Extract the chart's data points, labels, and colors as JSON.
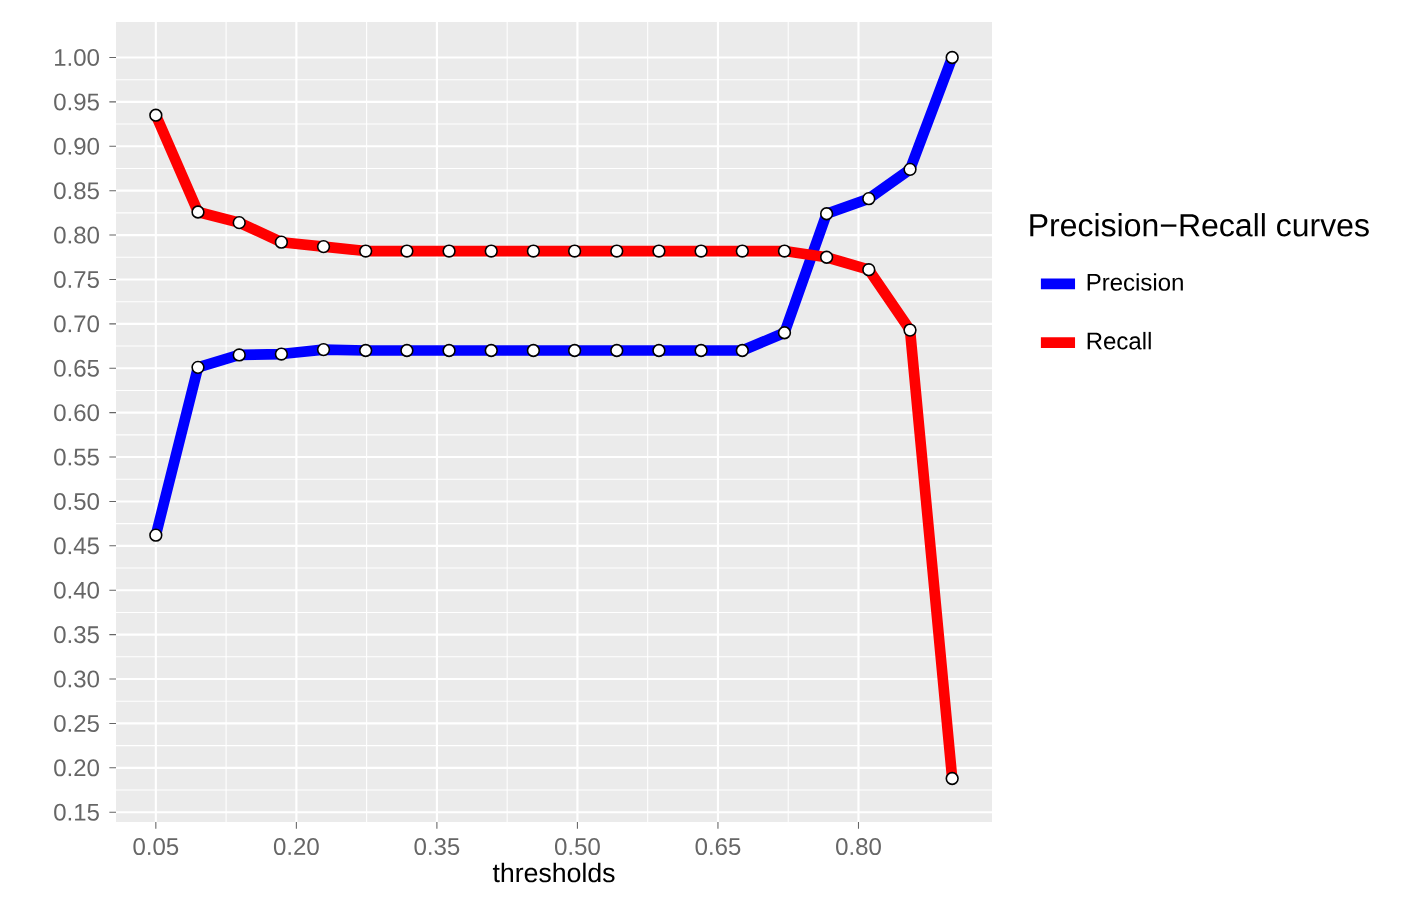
{
  "chart_data": {
    "type": "line",
    "xlabel": "thresholds",
    "legend_title": "Precision−Recall curves",
    "x": [
      0.05,
      0.095,
      0.139,
      0.184,
      0.229,
      0.274,
      0.318,
      0.363,
      0.408,
      0.453,
      0.497,
      0.542,
      0.587,
      0.632,
      0.676,
      0.721,
      0.766,
      0.811,
      0.855,
      0.9
    ],
    "series": [
      {
        "name": "Precision",
        "color": "#0000ff",
        "values": [
          0.462,
          0.651,
          0.665,
          0.666,
          0.671,
          0.67,
          0.67,
          0.67,
          0.67,
          0.67,
          0.67,
          0.67,
          0.67,
          0.67,
          0.67,
          0.69,
          0.824,
          0.841,
          0.874,
          1.0
        ]
      },
      {
        "name": "Recall",
        "color": "#ff0000",
        "values": [
          0.935,
          0.826,
          0.814,
          0.792,
          0.787,
          0.782,
          0.782,
          0.782,
          0.782,
          0.782,
          0.782,
          0.782,
          0.782,
          0.782,
          0.782,
          0.782,
          0.775,
          0.761,
          0.693,
          0.188
        ]
      }
    ],
    "xlim": [
      0.0075,
      0.9425
    ],
    "xticks": [
      0.05,
      {
        "value": 0.2,
        "label": "0.20"
      },
      0.35,
      {
        "value": 0.5,
        "label": "0.50"
      },
      0.65,
      {
        "value": 0.8,
        "label": "0.80"
      }
    ],
    "ylim": [
      0.139,
      1.04
    ],
    "yticks": [
      0.15,
      {
        "value": 0.2,
        "label": "0.20"
      },
      0.25,
      {
        "value": 0.3,
        "label": "0.30"
      },
      0.35,
      {
        "value": 0.4,
        "label": "0.40"
      },
      0.45,
      {
        "value": 0.5,
        "label": "0.50"
      },
      0.55,
      {
        "value": 0.6,
        "label": "0.60"
      },
      0.65,
      {
        "value": 0.7,
        "label": "0.70"
      },
      0.75,
      {
        "value": 0.8,
        "label": "0.80"
      },
      0.85,
      {
        "value": 0.9,
        "label": "0.90"
      },
      0.95,
      {
        "value": 1.0,
        "label": "1.00"
      }
    ],
    "grid": true,
    "legend": "right",
    "marker": "circle",
    "line_style": "solid"
  }
}
